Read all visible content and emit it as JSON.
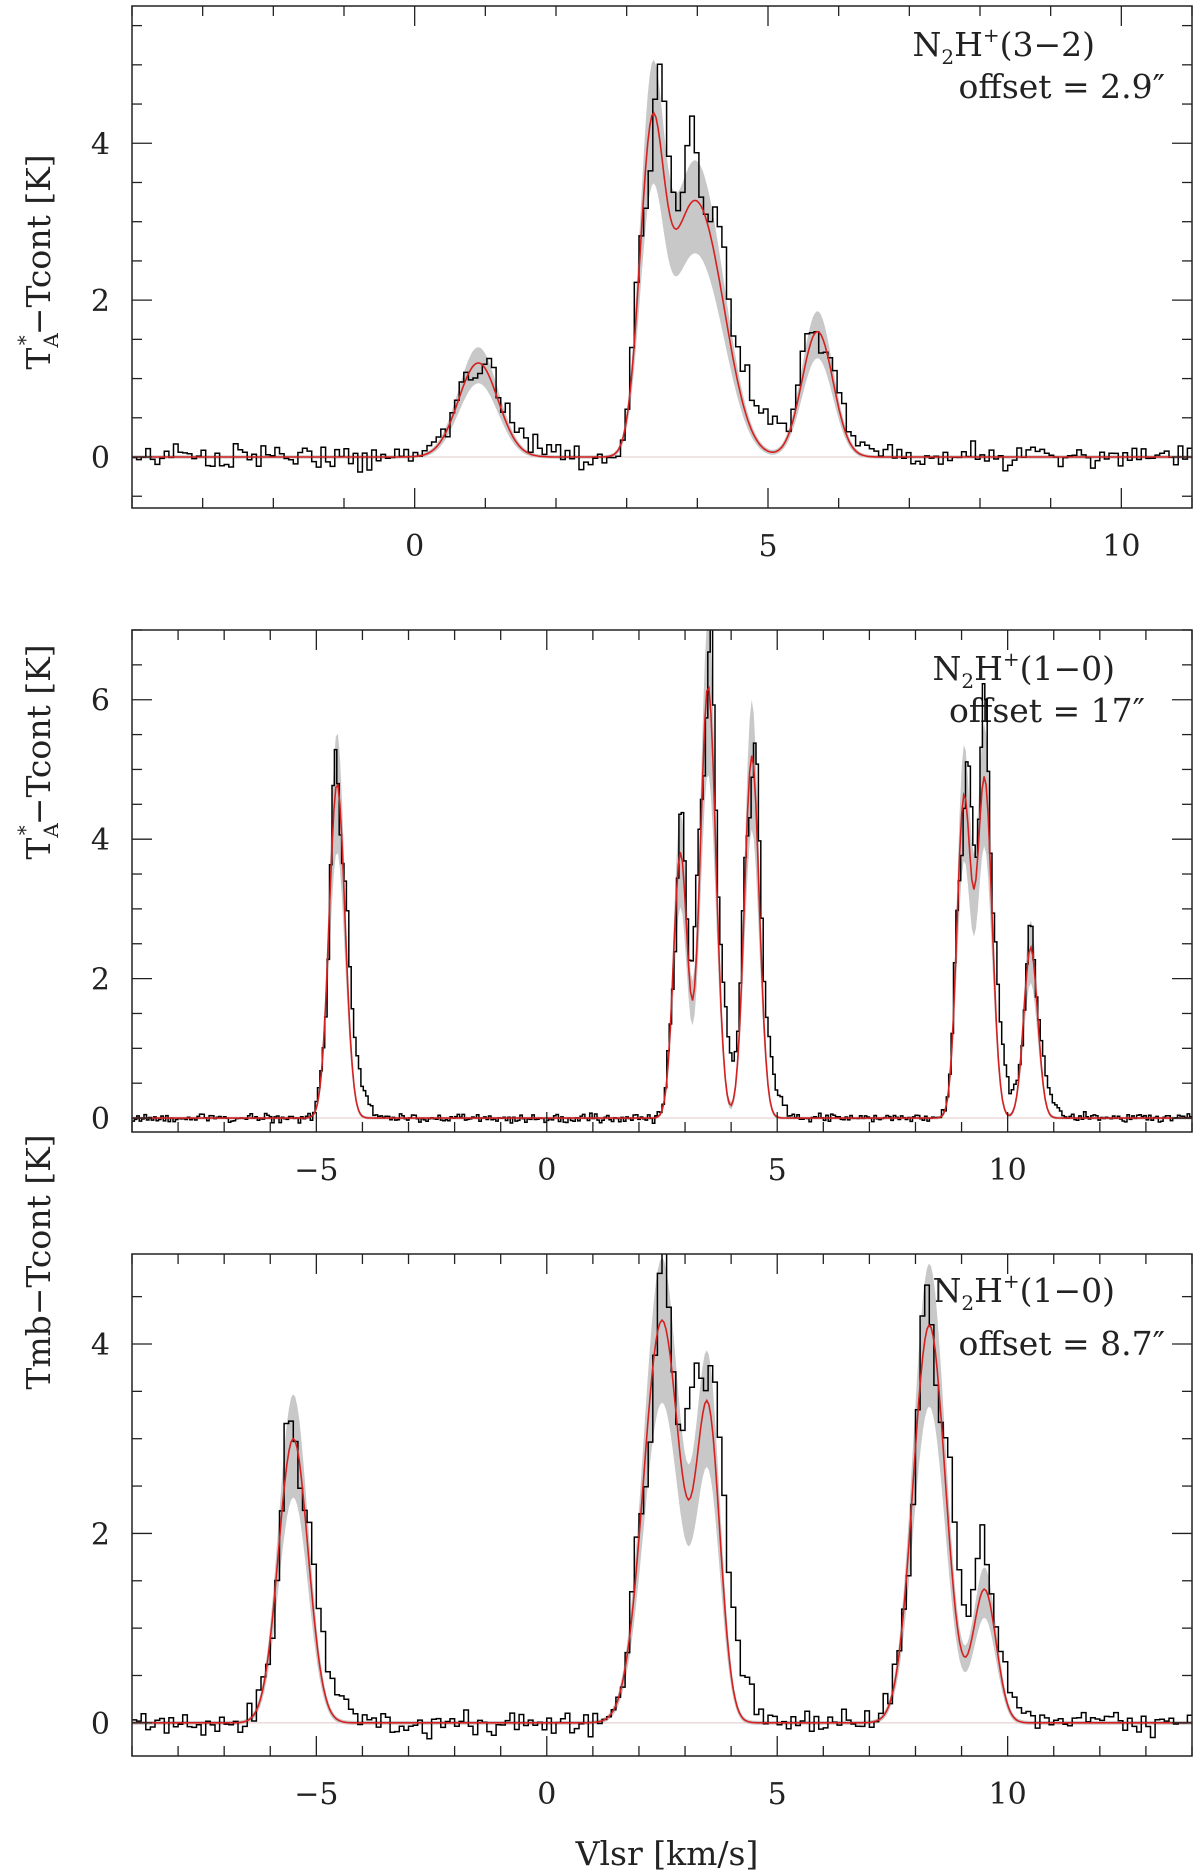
{
  "figure": {
    "xlabel": "Vlsr [km/s]",
    "colors": {
      "observed": "#000000",
      "model": "#d62020",
      "uncertainty": "#c8c8c8"
    }
  },
  "chart_data": [
    {
      "type": "line",
      "panel": "top",
      "ylabel_parts": [
        "T",
        "A",
        "*",
        "−Tcont [K]"
      ],
      "annotation": {
        "species": "N",
        "sub": "2",
        "tail": "H",
        "sup": "+",
        "transition": "(3−2)",
        "offset_label": "offset  =  2.9″"
      },
      "xlim": [
        -4,
        11
      ],
      "ylim": [
        -0.65,
        5.75
      ],
      "xticks": [
        0,
        5,
        10
      ],
      "xtick_labels": [
        "0",
        "5",
        "10"
      ],
      "yticks": [
        0,
        2,
        4
      ],
      "ytick_labels": [
        "0",
        "2",
        "4"
      ],
      "noise": 0.12,
      "components": [
        {
          "v": 0.9,
          "amp": 1.2,
          "width": 0.28
        },
        {
          "v": 3.35,
          "amp": 3.8,
          "width": 0.17
        },
        {
          "v": 3.75,
          "amp": 1.2,
          "width": 0.25
        },
        {
          "v": 4.1,
          "amp": 2.65,
          "width": 0.33
        },
        {
          "v": 5.7,
          "amp": 1.6,
          "width": 0.22
        }
      ],
      "series": [
        {
          "name": "observed",
          "style": "step"
        },
        {
          "name": "model",
          "style": "line"
        },
        {
          "name": "uncertainty",
          "style": "band"
        }
      ]
    },
    {
      "type": "line",
      "panel": "middle",
      "ylabel_parts": [
        "T",
        "A",
        "*",
        "−Tcont [K]"
      ],
      "annotation": {
        "species": "N",
        "sub": "2",
        "tail": "H",
        "sup": "+",
        "transition": "(1−0)",
        "offset_label": "offset  =  17″"
      },
      "xlim": [
        -9,
        14
      ],
      "ylim": [
        -0.2,
        7.0
      ],
      "xticks": [
        -5,
        0,
        5,
        10
      ],
      "xtick_labels": [
        "−5",
        "0",
        "5",
        "10"
      ],
      "yticks": [
        0,
        2,
        4,
        6
      ],
      "ytick_labels": [
        "0",
        "2",
        "4",
        "6"
      ],
      "noise": 0.05,
      "components": [
        {
          "v": -4.55,
          "amp": 4.8,
          "width": 0.17
        },
        {
          "v": 2.9,
          "amp": 3.8,
          "width": 0.15
        },
        {
          "v": 3.5,
          "amp": 6.2,
          "width": 0.17
        },
        {
          "v": 4.45,
          "amp": 5.2,
          "width": 0.16
        },
        {
          "v": 9.05,
          "amp": 4.55,
          "width": 0.15
        },
        {
          "v": 9.5,
          "amp": 4.85,
          "width": 0.16
        },
        {
          "v": 10.5,
          "amp": 2.45,
          "width": 0.15
        }
      ],
      "series": [
        {
          "name": "observed",
          "style": "step"
        },
        {
          "name": "model",
          "style": "line"
        },
        {
          "name": "uncertainty",
          "style": "band"
        }
      ]
    },
    {
      "type": "line",
      "panel": "bottom",
      "ylabel_parts": [
        "Tmb−Tcont [K]"
      ],
      "annotation": {
        "species": "N",
        "sub": "2",
        "tail": "H",
        "sup": "+",
        "transition": "(1−0)",
        "offset_label": "offset  =  8.7″"
      },
      "xlim": [
        -9,
        14
      ],
      "ylim": [
        -0.35,
        4.95
      ],
      "xticks": [
        -5,
        0,
        5,
        10
      ],
      "xtick_labels": [
        "−5",
        "0",
        "5",
        "10"
      ],
      "yticks": [
        0,
        2,
        4
      ],
      "ytick_labels": [
        "0",
        "2",
        "4"
      ],
      "noise": 0.1,
      "components": [
        {
          "v": -5.5,
          "amp": 3.0,
          "width": 0.32
        },
        {
          "v": 2.5,
          "amp": 4.25,
          "width": 0.4
        },
        {
          "v": 3.5,
          "amp": 3.2,
          "width": 0.26
        },
        {
          "v": 8.3,
          "amp": 4.2,
          "width": 0.35
        },
        {
          "v": 9.5,
          "amp": 1.4,
          "width": 0.25
        }
      ],
      "series": [
        {
          "name": "observed",
          "style": "step"
        },
        {
          "name": "model",
          "style": "line"
        },
        {
          "name": "uncertainty",
          "style": "band"
        }
      ]
    }
  ]
}
